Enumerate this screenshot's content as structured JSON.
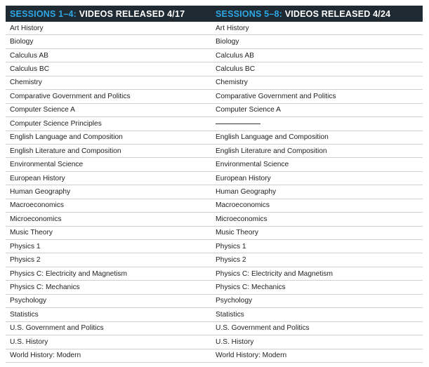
{
  "header": {
    "left_accent": "SESSIONS 1–4:",
    "left_rest": " VIDEOS RELEASED 4/17",
    "right_accent": "SESSIONS 5–8:",
    "right_rest": " VIDEOS RELEASED 4/24"
  },
  "rows": [
    {
      "left": "Art History",
      "right": "Art History"
    },
    {
      "left": "Biology",
      "right": "Biology"
    },
    {
      "left": "Calculus AB",
      "right": "Calculus AB"
    },
    {
      "left": "Calculus BC",
      "right": "Calculus BC"
    },
    {
      "left": "Chemistry",
      "right": "Chemistry"
    },
    {
      "left": "Comparative Government and Politics",
      "right": "Comparative Government and Politics"
    },
    {
      "left": "Computer Science A",
      "right": "Computer Science A"
    },
    {
      "left": "Computer Science Principles",
      "right": ""
    },
    {
      "left": "English Language and Composition",
      "right": "English Language and Composition"
    },
    {
      "left": "English Literature and Composition",
      "right": "English Literature and Composition"
    },
    {
      "left": "Environmental Science",
      "right": "Environmental Science"
    },
    {
      "left": "European History",
      "right": "European History"
    },
    {
      "left": "Human Geography",
      "right": "Human Geography"
    },
    {
      "left": "Macroeconomics",
      "right": "Macroeconomics"
    },
    {
      "left": "Microeconomics",
      "right": "Microeconomics"
    },
    {
      "left": "Music Theory",
      "right": "Music Theory"
    },
    {
      "left": "Physics 1",
      "right": "Physics 1"
    },
    {
      "left": "Physics 2",
      "right": "Physics 2"
    },
    {
      "left": "Physics C: Electricity and Magnetism",
      "right": "Physics C: Electricity and Magnetism"
    },
    {
      "left": "Physics C: Mechanics",
      "right": "Physics C: Mechanics"
    },
    {
      "left": "Psychology",
      "right": "Psychology"
    },
    {
      "left": "Statistics",
      "right": "Statistics"
    },
    {
      "left": "U.S. Government and Politics",
      "right": "U.S. Government and Politics"
    },
    {
      "left": "U.S. History",
      "right": "U.S. History"
    },
    {
      "left": "World History: Modern",
      "right": "World History: Modern"
    }
  ],
  "colors": {
    "header_bg": "#1f2a33",
    "accent": "#2ea7e6",
    "header_text": "#ffffff"
  }
}
